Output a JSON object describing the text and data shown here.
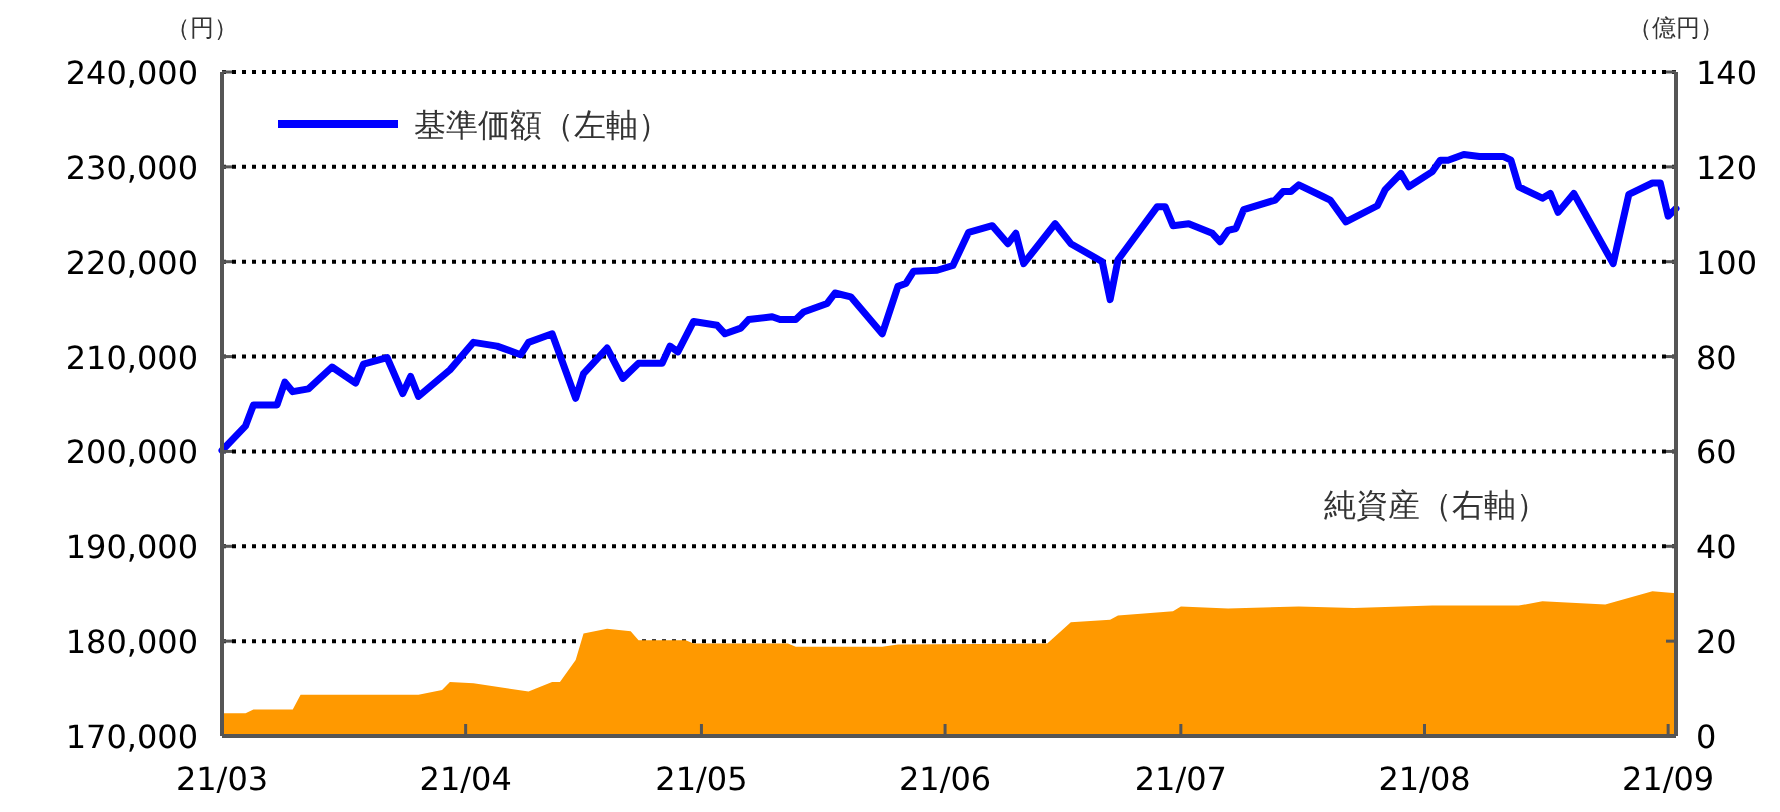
{
  "chart_data": {
    "type": "line",
    "ylabel": "（円）",
    "y2label": "（億円）",
    "xlim": [
      "--03-01",
      "--09-02"
    ],
    "xticks": [
      {
        "value": "--03-01",
        "label": "21/03"
      },
      {
        "value": "--04-01",
        "label": "21/04"
      },
      {
        "value": "--05-01",
        "label": "21/05"
      },
      {
        "value": "--06-01",
        "label": "21/06"
      },
      {
        "value": "--07-01",
        "label": "21/07"
      },
      {
        "value": "--08-01",
        "label": "21/08"
      },
      {
        "value": "--09-01",
        "label": "21/09"
      }
    ],
    "ylim": [
      170000,
      240000
    ],
    "yticks": [
      {
        "value": 170000,
        "label": "170,000"
      },
      {
        "value": 180000,
        "label": "180,000"
      },
      {
        "value": 190000,
        "label": "190,000"
      },
      {
        "value": 200000,
        "label": "200,000"
      },
      {
        "value": 210000,
        "label": "210,000"
      },
      {
        "value": 220000,
        "label": "220,000"
      },
      {
        "value": 230000,
        "label": "230,000"
      },
      {
        "value": 240000,
        "label": "240,000"
      }
    ],
    "y2lim": [
      0,
      140
    ],
    "y2ticks": [
      0,
      20,
      40,
      60,
      80,
      100,
      120,
      140
    ],
    "grid": "y",
    "legend": "top left",
    "series": [
      {
        "name": "純資産（右軸）",
        "type": "area",
        "axis": "y2",
        "color": "#ff9900",
        "x": [
          "--03-01",
          "--03-04",
          "--03-05",
          "--03-10",
          "--03-11",
          "--03-26",
          "--03-29",
          "--03-30",
          "--04-02",
          "--04-09",
          "--04-12",
          "--04-13",
          "--04-15",
          "--04-16",
          "--04-19",
          "--04-22",
          "--04-23",
          "--04-29",
          "--04-30",
          "--05-12",
          "--05-13",
          "--05-24",
          "--05-26",
          "--06-14",
          "--06-17",
          "--06-22",
          "--06-23",
          "--06-30",
          "--07-01",
          "--07-07",
          "--07-16",
          "--07-23",
          "--08-02",
          "--08-13",
          "--08-16",
          "--08-24",
          "--08-30",
          "--09-02"
        ],
        "values": [
          4.8,
          4.8,
          5.6,
          5.6,
          8.7,
          8.7,
          9.7,
          11.4,
          11.1,
          9.4,
          11.4,
          11.4,
          16.0,
          21.6,
          22.6,
          22.1,
          20.2,
          20.2,
          19.5,
          19.5,
          18.8,
          18.8,
          19.3,
          19.5,
          24.0,
          24.5,
          25.4,
          26.3,
          27.3,
          26.9,
          27.3,
          27.0,
          27.5,
          27.5,
          28.4,
          27.7,
          30.5,
          30.1
        ]
      },
      {
        "name": "基準価額（左軸）",
        "type": "line",
        "color": "#0000ff",
        "x": [
          "--03-01",
          "--03-04",
          "--03-05",
          "--03-08",
          "--03-09",
          "--03-10",
          "--03-12",
          "--03-15",
          "--03-18",
          "--03-19",
          "--03-22",
          "--03-24",
          "--03-25",
          "--03-26",
          "--03-30",
          "--04-02",
          "--04-05",
          "--04-08",
          "--04-09",
          "--04-12",
          "--04-15",
          "--04-16",
          "--04-19",
          "--04-21",
          "--04-23",
          "--04-26",
          "--04-27",
          "--04-28",
          "--04-30",
          "--05-03",
          "--05-04",
          "--05-06",
          "--05-07",
          "--05-10",
          "--05-11",
          "--05-13",
          "--05-14",
          "--05-17",
          "--05-18",
          "--05-20",
          "--05-24",
          "--05-26",
          "--05-27",
          "--05-28",
          "--05-31",
          "--06-02",
          "--06-04",
          "--06-07",
          "--06-09",
          "--06-10",
          "--06-11",
          "--06-15",
          "--06-17",
          "--06-21",
          "--06-22",
          "--06-23",
          "--06-28",
          "--06-29",
          "--06-30",
          "--07-02",
          "--07-05",
          "--07-06",
          "--07-07",
          "--07-08",
          "--07-09",
          "--07-13",
          "--07-14",
          "--07-15",
          "--07-16",
          "--07-19",
          "--07-20",
          "--07-22",
          "--07-26",
          "--07-27",
          "--07-29",
          "--07-30",
          "--08-02",
          "--08-03",
          "--08-04",
          "--08-06",
          "--08-08",
          "--08-11",
          "--08-12",
          "--08-13",
          "--08-16",
          "--08-17",
          "--08-18",
          "--08-20",
          "--08-25",
          "--08-27",
          "--08-30",
          "--08-31",
          "--09-01",
          "--09-02"
        ],
        "values": [
          200100,
          202700,
          204900,
          204900,
          207300,
          206300,
          206600,
          208900,
          207200,
          209200,
          209900,
          206100,
          207900,
          205800,
          208600,
          211500,
          211100,
          210200,
          211500,
          212400,
          205600,
          208200,
          210900,
          207700,
          209300,
          209300,
          211100,
          210500,
          213700,
          213300,
          212400,
          213000,
          213900,
          214200,
          213900,
          213900,
          214700,
          215600,
          216700,
          216300,
          212400,
          217400,
          217700,
          219000,
          219100,
          219600,
          223100,
          223800,
          221900,
          223000,
          219800,
          224000,
          221900,
          220000,
          216000,
          220200,
          225800,
          225800,
          223800,
          224000,
          223000,
          222100,
          223300,
          223500,
          225500,
          226500,
          227400,
          227400,
          228100,
          226900,
          226500,
          224200,
          225900,
          227600,
          229300,
          227900,
          229500,
          230700,
          230700,
          231300,
          231100,
          231100,
          230700,
          227900,
          226700,
          227200,
          225200,
          227200,
          219800,
          227100,
          228300,
          228300,
          224800,
          225600
        ]
      }
    ]
  }
}
